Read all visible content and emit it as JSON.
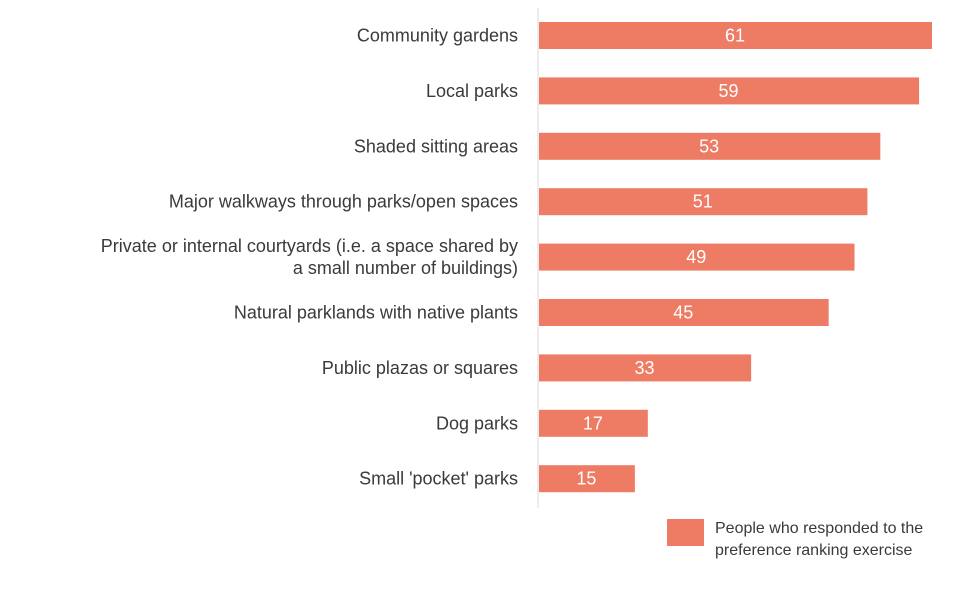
{
  "chart_data": {
    "type": "bar",
    "orientation": "horizontal",
    "categories": [
      [
        "Community gardens"
      ],
      [
        "Local parks"
      ],
      [
        "Shaded sitting areas"
      ],
      [
        "Major walkways through parks/open spaces"
      ],
      [
        "Private or internal courtyards (i.e. a space shared by",
        "a small number of buildings)"
      ],
      [
        "Natural parklands with native plants"
      ],
      [
        "Public plazas or squares"
      ],
      [
        "Dog parks"
      ],
      [
        "Small 'pocket' parks"
      ]
    ],
    "series": [
      {
        "name": "People who responded to the preference ranking exercise",
        "color": "#ee7b64",
        "values": [
          61,
          59,
          53,
          51,
          49,
          45,
          33,
          17,
          15
        ]
      }
    ],
    "legend": {
      "position": "bottom-right",
      "lines": [
        "People who responded to the",
        "preference ranking exercise"
      ]
    },
    "xlim": [
      0,
      61
    ],
    "grid": false
  }
}
